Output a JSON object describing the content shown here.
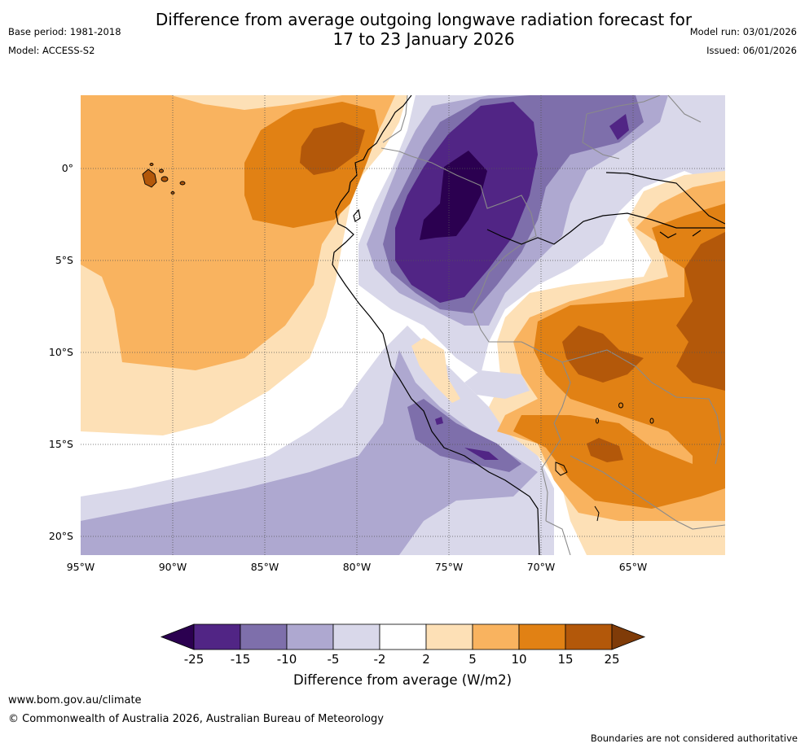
{
  "title_line1": "Difference from average outgoing longwave radiation forecast for",
  "title_line2": "17 to 23 January 2026",
  "base_period": "Base period: 1981-2018",
  "model": "Model: ACCESS-S2",
  "model_run": "Model run: 03/01/2026",
  "issued": "Issued: 06/01/2026",
  "lat_labels": [
    "0°",
    "5°S",
    "10°S",
    "15°S",
    "20°S"
  ],
  "lon_labels": [
    "95°W",
    "90°W",
    "85°W",
    "80°W",
    "75°W",
    "70°W",
    "65°W"
  ],
  "colorbar": {
    "ticks": [
      "-25",
      "-15",
      "-10",
      "-5",
      "-2",
      "2",
      "5",
      "10",
      "15",
      "25"
    ],
    "colors": {
      "lt_minus25": "#2b0050",
      "m25_m15": "#512585",
      "m15_m10": "#7e6fab",
      "m10_m5": "#aea8d0",
      "m5_m2": "#d9d8ea",
      "m2_2": "#ffffff",
      "p2_p5": "#fde0b6",
      "p5_p10": "#f9b35f",
      "p10_p15": "#e18114",
      "p15_p25": "#b3580a",
      "gt_25": "#7f3b08"
    },
    "label": "Difference from average (W/m2)"
  },
  "footer": {
    "url": "www.bom.gov.au/climate",
    "copyright": "© Commonwealth of Australia 2026, Australian Bureau of Meteorology",
    "note": "Boundaries are not considered authoritative"
  }
}
